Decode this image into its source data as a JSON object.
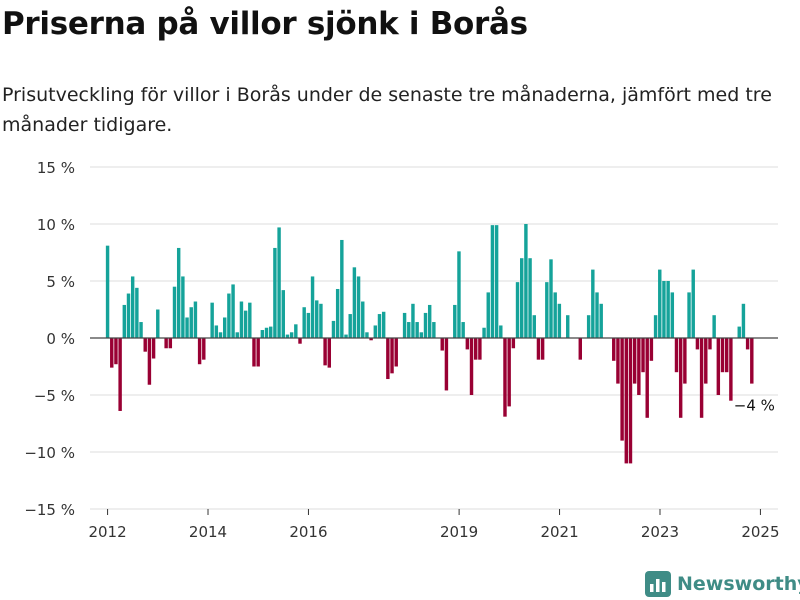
{
  "header": {
    "title": "Priserna på villor sjönk i Borås",
    "subtitle": "Prisutveckling för villor i Borås under de senaste tre månaderna, jämfört med tre månader tidigare."
  },
  "brand": {
    "name": "Newsworthy"
  },
  "colors": {
    "positive": "#15a39a",
    "negative": "#990033",
    "grid": "#dddddd",
    "brand": "#3f8c86"
  },
  "chart_data": {
    "type": "bar",
    "grid": true,
    "ylim": [
      -15,
      15
    ],
    "yticks": [
      15,
      10,
      5,
      0,
      -5,
      -10,
      -15
    ],
    "ytick_labels": [
      "15 %",
      "10 %",
      "5 %",
      "0 %",
      "−5 %",
      "−10 %",
      "−15 %"
    ],
    "xticks": [
      "2012",
      "2014",
      "2016",
      "2019",
      "2021",
      "2023",
      "2025"
    ],
    "xtick_positions": [
      2012.0,
      2014.0,
      2016.0,
      2019.0,
      2021.0,
      2023.0,
      2025.0
    ],
    "x_start": 2012.0,
    "x_step": 0.0833,
    "annotation": {
      "text": "−4 %",
      "value": -4
    },
    "values": [
      8.1,
      -2.6,
      -2.3,
      -6.4,
      2.9,
      3.9,
      5.4,
      4.4,
      1.4,
      -1.2,
      -4.1,
      -1.8,
      2.5,
      0,
      -0.9,
      -0.9,
      4.5,
      7.9,
      5.4,
      1.8,
      2.7,
      3.2,
      -2.3,
      -1.9,
      0,
      3.1,
      1.1,
      0.5,
      1.8,
      3.9,
      4.7,
      0.5,
      3.2,
      2.4,
      3.1,
      -2.5,
      -2.5,
      0.7,
      0.9,
      1.0,
      7.9,
      9.7,
      4.2,
      0.3,
      0.5,
      1.2,
      -0.5,
      2.7,
      2.2,
      5.4,
      3.3,
      3.0,
      -2.4,
      -2.6,
      1.5,
      4.3,
      8.6,
      0.3,
      2.1,
      6.2,
      5.4,
      3.2,
      0.5,
      -0.2,
      1.1,
      2.1,
      2.3,
      -3.6,
      -3.1,
      -2.5,
      0,
      2.2,
      1.4,
      3.0,
      1.4,
      0.5,
      2.2,
      2.9,
      1.4,
      0,
      -1.1,
      -4.6,
      0,
      2.9,
      7.6,
      1.4,
      -1.0,
      -5.0,
      -1.9,
      -1.9,
      0.9,
      4.0,
      9.9,
      9.9,
      1.1,
      -6.9,
      -6.0,
      -0.9,
      4.9,
      7.0,
      10.0,
      7.0,
      2.0,
      -1.9,
      -1.9,
      4.9,
      6.9,
      4.0,
      3.0,
      0,
      2.0,
      0,
      0,
      -1.9,
      0,
      2.0,
      6.0,
      4.0,
      3.0,
      0,
      0,
      -2.0,
      -4.0,
      -9.0,
      -11.0,
      -11.0,
      -4.0,
      -5.0,
      -3.0,
      -7.0,
      -2.0,
      2.0,
      6.0,
      5.0,
      5.0,
      4.0,
      -3.0,
      -7.0,
      -4.0,
      4.0,
      6.0,
      -1.0,
      -7.0,
      -4.0,
      -1.0,
      2.0,
      -5.0,
      -3.0,
      -3.0,
      -5.5,
      0,
      1.0,
      3.0,
      -1.0,
      -4.0
    ]
  }
}
